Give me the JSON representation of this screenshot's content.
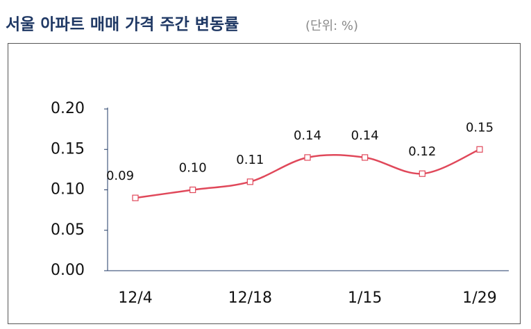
{
  "chart_data": {
    "type": "line",
    "title": "서울 아파트 매매 가격 주간 변동률",
    "subtitle": "(단위: %)",
    "categories": [
      "12/4",
      null,
      "12/18",
      null,
      "1/15",
      null,
      "1/29"
    ],
    "values": [
      0.09,
      0.1,
      0.11,
      0.14,
      0.14,
      0.12,
      0.15
    ],
    "value_labels": [
      "0.09",
      "0.10",
      "0.11",
      "0.14",
      "0.14",
      "0.12",
      "0.15"
    ],
    "color": "#e0485a",
    "smooth": true,
    "ylim": [
      0,
      0.2
    ],
    "yticks": [
      {
        "value": 0,
        "label": "0.00"
      },
      0.05,
      {
        "value": 0.1,
        "label": "0.10"
      },
      0.15,
      {
        "value": 0.2,
        "label": "0.20"
      }
    ]
  }
}
